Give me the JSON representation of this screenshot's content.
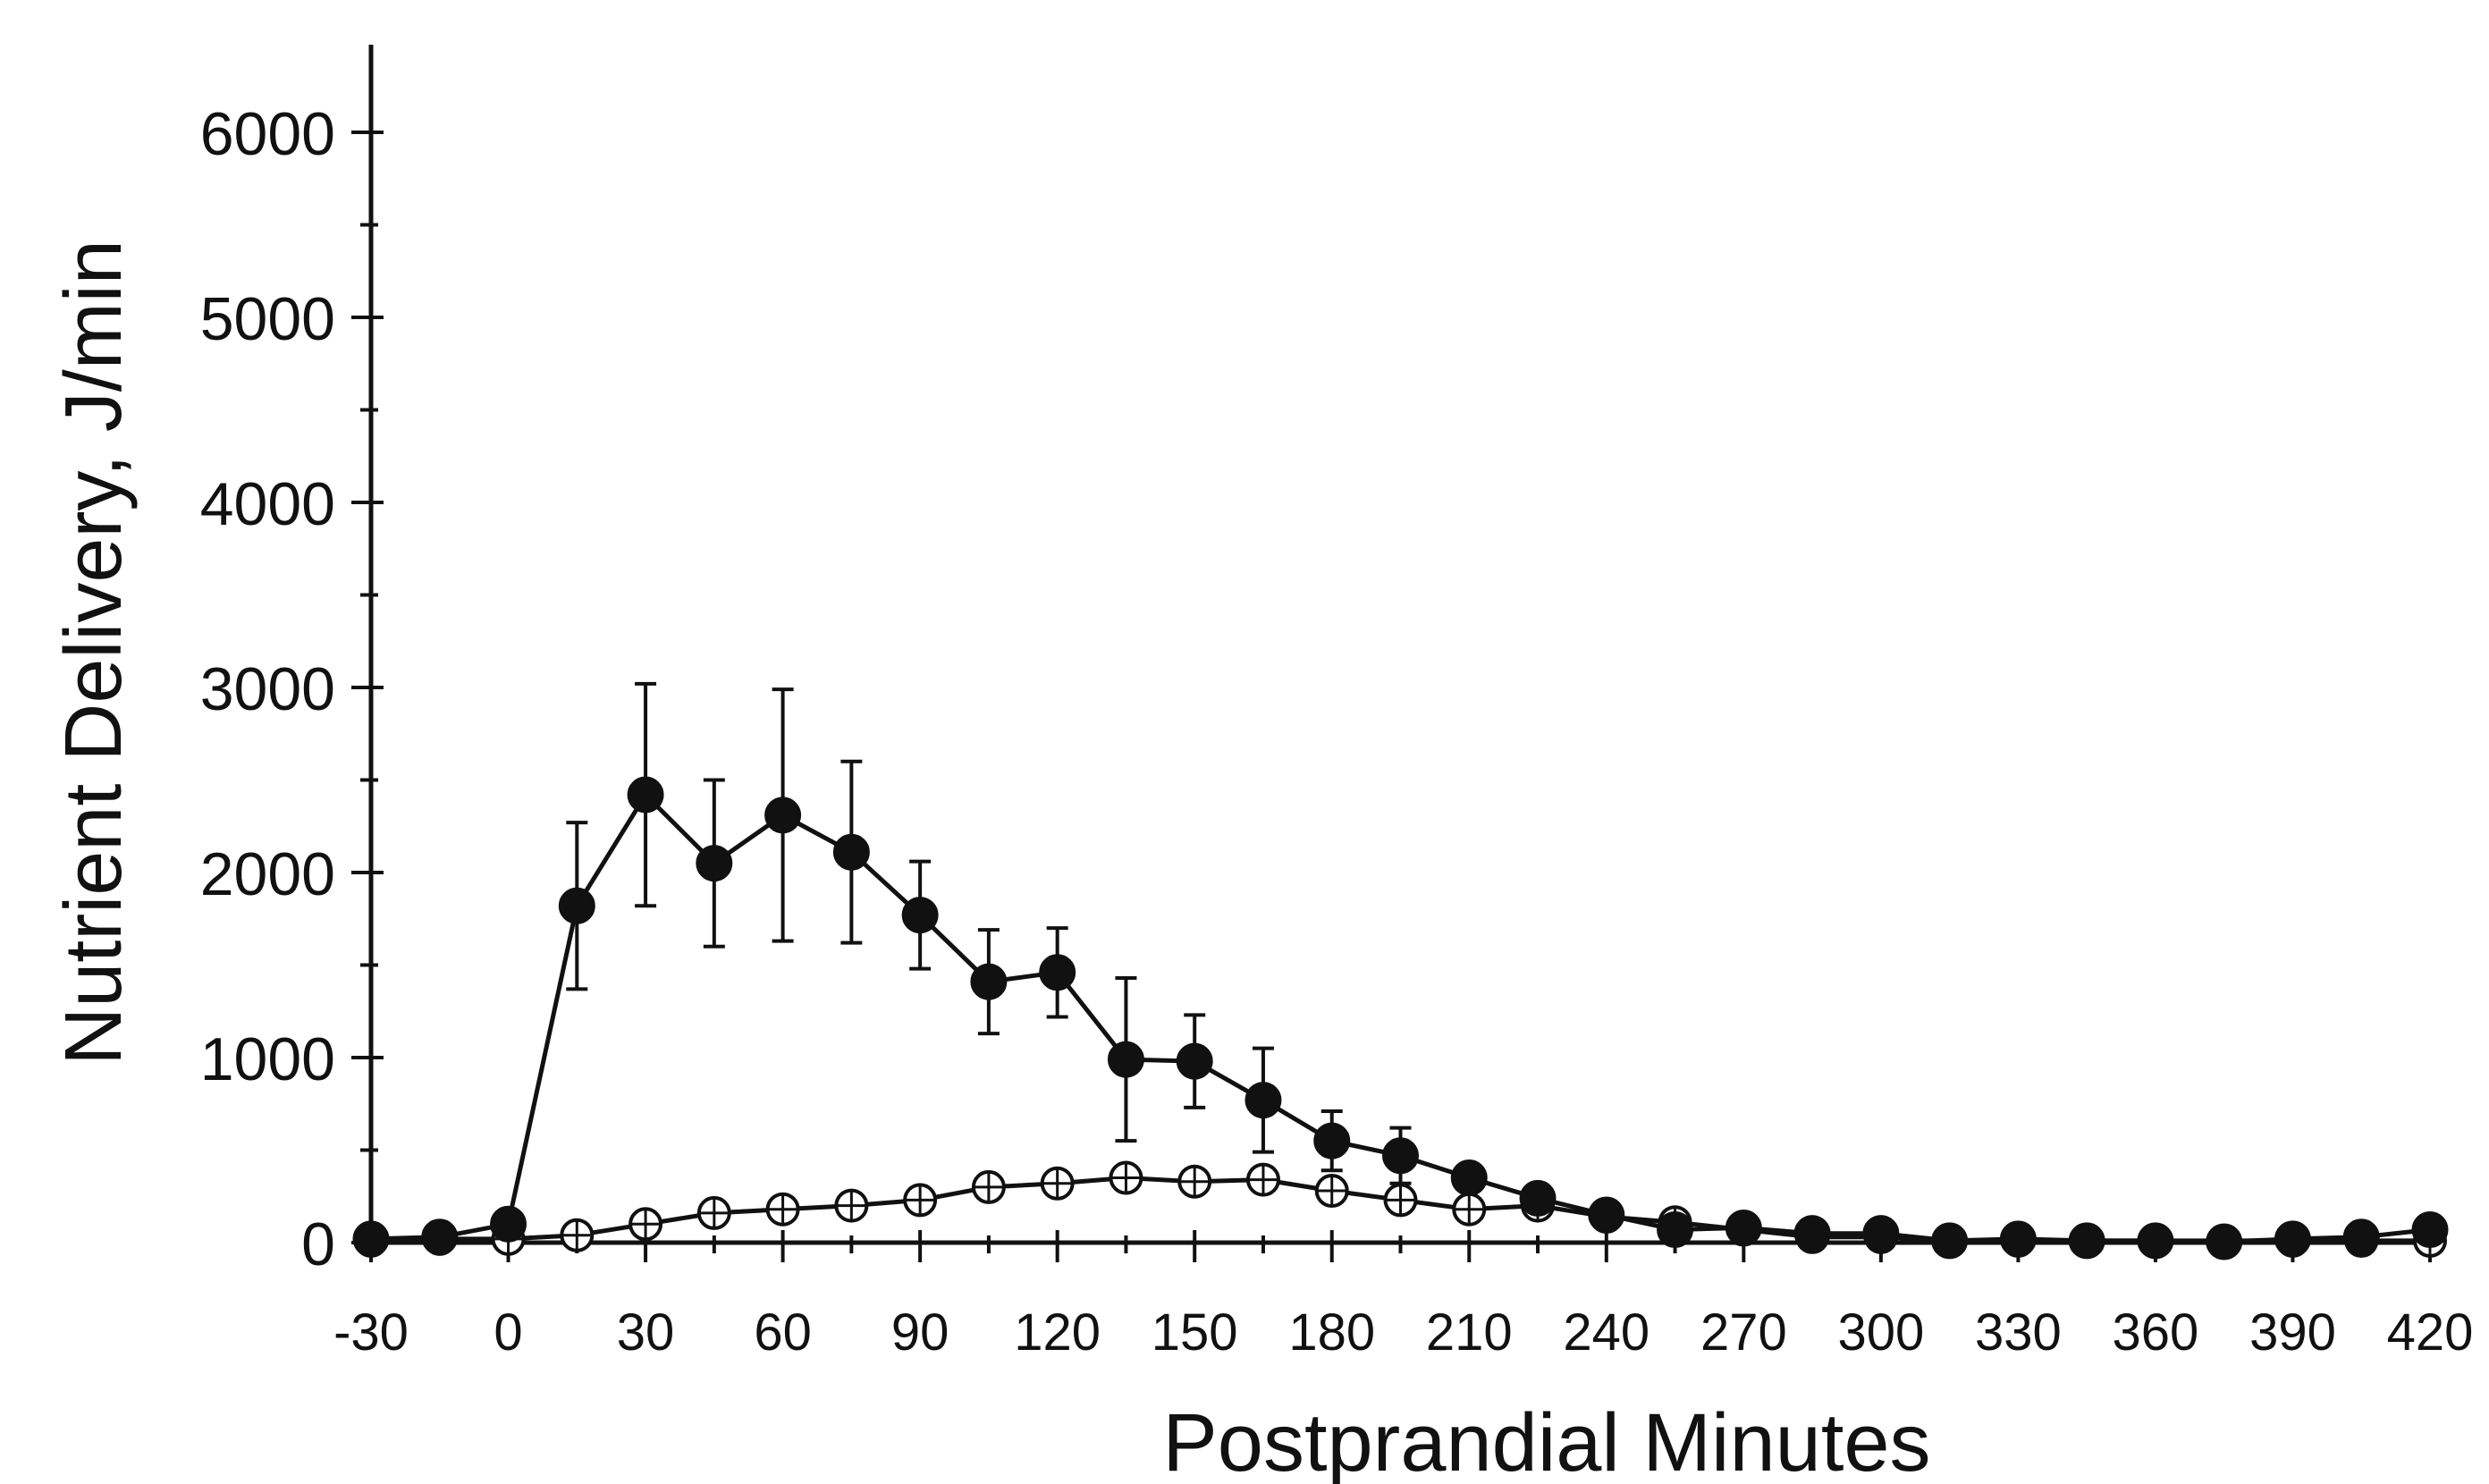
{
  "chart_data": {
    "type": "line",
    "title": "",
    "xlabel": "Postprandial Minutes",
    "ylabel": "Nutrient Delivery, J/min",
    "xlim": [
      -30,
      420
    ],
    "ylim": [
      0,
      6000
    ],
    "x_ticks": [
      -30,
      0,
      30,
      60,
      90,
      120,
      150,
      180,
      210,
      240,
      270,
      300,
      330,
      360,
      390,
      420
    ],
    "x_tick_labels": [
      "-30",
      "0",
      "30",
      "60",
      "90",
      "120",
      "150",
      "180",
      "210",
      "240",
      "270",
      "300",
      "330",
      "360",
      "390",
      "420"
    ],
    "y_ticks": [
      0,
      1000,
      2000,
      3000,
      4000,
      5000,
      6000
    ],
    "y_tick_labels": [
      "0",
      "1000",
      "2000",
      "3000",
      "4000",
      "5000",
      "6000"
    ],
    "grid": false,
    "legend": "none",
    "series": [
      {
        "marker": "filled-circle",
        "color": "#111111",
        "points": [
          {
            "x": -30,
            "y": 20
          },
          {
            "x": -15,
            "y": 30
          },
          {
            "x": 0,
            "y": 100
          },
          {
            "x": 15,
            "y": 1820,
            "err": 450
          },
          {
            "x": 30,
            "y": 2420,
            "err": 600
          },
          {
            "x": 45,
            "y": 2050,
            "err": 450
          },
          {
            "x": 60,
            "y": 2310,
            "err": 680
          },
          {
            "x": 75,
            "y": 2110,
            "err": 490
          },
          {
            "x": 90,
            "y": 1770,
            "err": 290
          },
          {
            "x": 105,
            "y": 1410,
            "err": 280
          },
          {
            "x": 120,
            "y": 1460,
            "err": 240
          },
          {
            "x": 135,
            "y": 990,
            "err": 440
          },
          {
            "x": 150,
            "y": 980,
            "err": 250
          },
          {
            "x": 165,
            "y": 770,
            "err": 280
          },
          {
            "x": 180,
            "y": 550,
            "err": 160
          },
          {
            "x": 195,
            "y": 470,
            "err": 150
          },
          {
            "x": 210,
            "y": 350
          },
          {
            "x": 225,
            "y": 240
          },
          {
            "x": 240,
            "y": 150
          },
          {
            "x": 255,
            "y": 70
          },
          {
            "x": 270,
            "y": 80
          },
          {
            "x": 285,
            "y": 50
          },
          {
            "x": 300,
            "y": 50
          },
          {
            "x": 315,
            "y": 10
          },
          {
            "x": 330,
            "y": 20
          },
          {
            "x": 345,
            "y": 10
          },
          {
            "x": 360,
            "y": 10
          },
          {
            "x": 375,
            "y": 5
          },
          {
            "x": 390,
            "y": 20
          },
          {
            "x": 405,
            "y": 30
          },
          {
            "x": 420,
            "y": 70
          }
        ]
      },
      {
        "marker": "open-circle-cross",
        "color": "#111111",
        "points": [
          {
            "x": -30,
            "y": 10
          },
          {
            "x": -15,
            "y": 20
          },
          {
            "x": 0,
            "y": 20
          },
          {
            "x": 15,
            "y": 40
          },
          {
            "x": 30,
            "y": 100
          },
          {
            "x": 45,
            "y": 160
          },
          {
            "x": 60,
            "y": 180
          },
          {
            "x": 75,
            "y": 200
          },
          {
            "x": 90,
            "y": 230
          },
          {
            "x": 105,
            "y": 300
          },
          {
            "x": 120,
            "y": 320
          },
          {
            "x": 135,
            "y": 350
          },
          {
            "x": 150,
            "y": 330
          },
          {
            "x": 165,
            "y": 340
          },
          {
            "x": 180,
            "y": 280
          },
          {
            "x": 195,
            "y": 230
          },
          {
            "x": 210,
            "y": 180
          },
          {
            "x": 225,
            "y": 200
          },
          {
            "x": 240,
            "y": 140
          },
          {
            "x": 255,
            "y": 110
          },
          {
            "x": 270,
            "y": 70
          },
          {
            "x": 285,
            "y": 30
          },
          {
            "x": 300,
            "y": 30
          },
          {
            "x": 315,
            "y": 10
          },
          {
            "x": 330,
            "y": 10
          },
          {
            "x": 345,
            "y": 10
          },
          {
            "x": 360,
            "y": 10
          },
          {
            "x": 375,
            "y": 10
          },
          {
            "x": 390,
            "y": 10
          },
          {
            "x": 405,
            "y": 10
          },
          {
            "x": 420,
            "y": 10
          }
        ]
      }
    ]
  }
}
